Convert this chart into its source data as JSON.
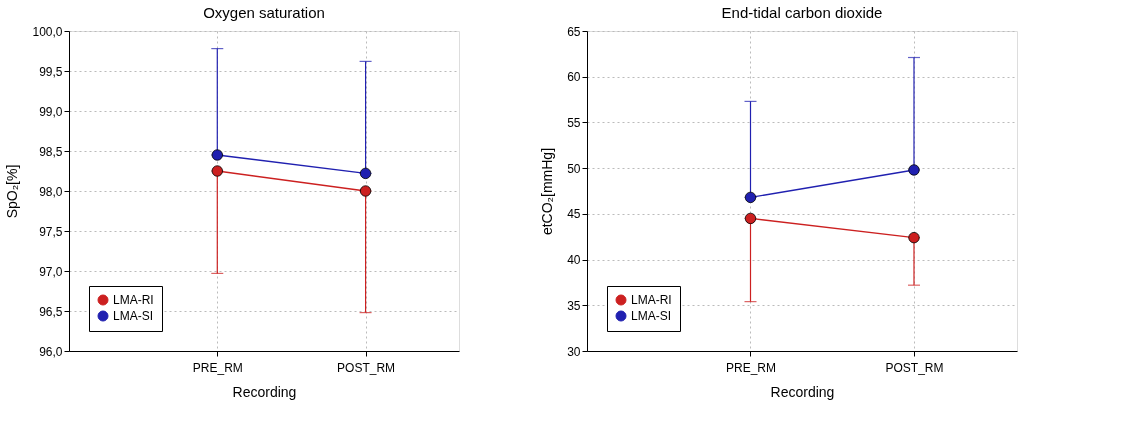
{
  "chart_data": [
    {
      "type": "line",
      "title": "Oxygen saturation",
      "xlabel": "Recording",
      "ylabel": "SpO₂[%]",
      "categories": [
        "PRE_RM",
        "POST_RM"
      ],
      "series": [
        {
          "name": "LMA-RI",
          "color": "#cc2020",
          "values": [
            98.25,
            98.0
          ],
          "errors": [
            [
              96.97,
              98.25
            ],
            [
              96.48,
              98.0
            ]
          ]
        },
        {
          "name": "LMA-SI",
          "color": "#2020b0",
          "values": [
            98.45,
            98.22
          ],
          "errors": [
            [
              98.45,
              99.78
            ],
            [
              98.22,
              99.62
            ]
          ]
        }
      ],
      "ylim": [
        96.0,
        100.0
      ],
      "yticks": [
        {
          "value": 96.0,
          "label": "96,0"
        },
        {
          "value": 96.5,
          "label": "96,5"
        },
        {
          "value": 97.0,
          "label": "97,0"
        },
        {
          "value": 97.5,
          "label": "97,5"
        },
        {
          "value": 98.0,
          "label": "98,0"
        },
        {
          "value": 98.5,
          "label": "98,5"
        },
        {
          "value": 99.0,
          "label": "99,0"
        },
        {
          "value": 99.5,
          "label": "99,5"
        },
        {
          "value": 100.0,
          "label": "100,0"
        }
      ],
      "grid": true,
      "legend": "bottom left",
      "marker": "circle",
      "line_style": "solid"
    },
    {
      "type": "line",
      "title": "End-tidal carbon dioxide",
      "xlabel": "Recording",
      "ylabel": "etCO₂[mmHg]",
      "categories": [
        "PRE_RM",
        "POST_RM"
      ],
      "series": [
        {
          "name": "LMA-RI",
          "color": "#cc2020",
          "values": [
            44.5,
            42.4
          ],
          "errors": [
            [
              35.4,
              44.5
            ],
            [
              37.2,
              42.4
            ]
          ]
        },
        {
          "name": "LMA-SI",
          "color": "#2020b0",
          "values": [
            46.8,
            49.8
          ],
          "errors": [
            [
              46.8,
              57.3
            ],
            [
              49.8,
              62.1
            ]
          ]
        }
      ],
      "ylim": [
        30,
        65
      ],
      "yticks": [
        30,
        35,
        40,
        45,
        50,
        55,
        60,
        65
      ],
      "grid": true,
      "legend": "bottom left",
      "marker": "circle",
      "line_style": "solid"
    }
  ]
}
